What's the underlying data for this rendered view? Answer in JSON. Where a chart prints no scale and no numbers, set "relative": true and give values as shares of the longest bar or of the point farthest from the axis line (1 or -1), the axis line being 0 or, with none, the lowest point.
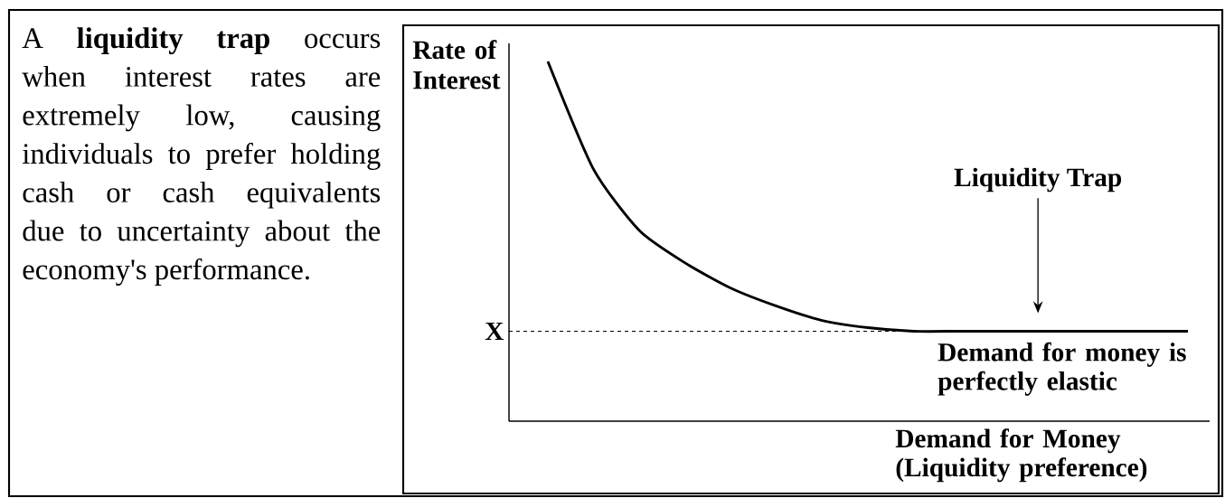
{
  "chart_data": {
    "type": "line",
    "relative": true,
    "ylabel": "Rate of Interest",
    "xlabel": "Demand for Money (Liquidity preference)",
    "categories": [
      null,
      null,
      null,
      null,
      null,
      null,
      null,
      null,
      null,
      null,
      null,
      null,
      null,
      null,
      null
    ],
    "values": [
      1.0,
      0.7,
      0.53,
      0.44,
      0.37,
      0.32,
      0.28,
      0.26,
      0.25,
      0.25,
      0.25,
      0.25,
      0.25,
      0.25,
      0.25
    ],
    "color": "#000000",
    "line_style": "solid",
    "marker": "none",
    "ref_lines": [
      {
        "axis": "y",
        "value": 0.25,
        "label": "X",
        "line_style": "dashed",
        "color": "#000000"
      }
    ],
    "annotations": [
      "A **liquidity trap** occurs when interest rates are extremely low, causing individuals to prefer holding cash or cash equivalents due to uncertainty about the economy's performance.",
      "Liquidity Trap",
      "Demand for money is perfectly elastic"
    ]
  }
}
